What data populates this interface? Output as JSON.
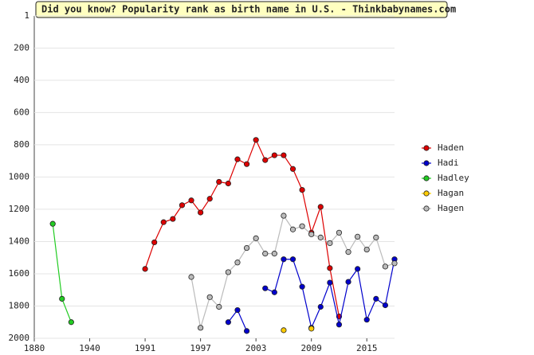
{
  "chart_data": {
    "type": "line",
    "title": "Did you know? Popularity rank as birth name in U.S. - Thinkbabynames.com",
    "categories": [
      "1880",
      null,
      null,
      null,
      null,
      null,
      "1940",
      null,
      null,
      null,
      null,
      null,
      "1991",
      null,
      null,
      null,
      null,
      null,
      "1997",
      null,
      null,
      null,
      null,
      null,
      "2003",
      null,
      null,
      null,
      null,
      null,
      "2009",
      null,
      null,
      null,
      null,
      null,
      "2015",
      null,
      null,
      null
    ],
    "ylim": [
      1,
      2000
    ],
    "yticks": [
      1,
      200,
      400,
      600,
      800,
      1000,
      1200,
      1400,
      1600,
      1800,
      2000
    ],
    "inverted_y": true,
    "grid": true,
    "legend": "right",
    "series": [
      {
        "name": "Haden",
        "color": "#dd0000",
        "values": [
          null,
          null,
          null,
          null,
          null,
          null,
          null,
          null,
          null,
          null,
          null,
          null,
          1570,
          1405,
          1280,
          1260,
          1175,
          1145,
          1220,
          1135,
          1030,
          1040,
          890,
          920,
          770,
          895,
          865,
          865,
          950,
          1080,
          1345,
          1185,
          1565,
          1865,
          null,
          null,
          null,
          null,
          null,
          null
        ]
      },
      {
        "name": "Hadi",
        "color": "#0000cc",
        "values": [
          null,
          null,
          null,
          null,
          null,
          null,
          null,
          null,
          null,
          null,
          null,
          null,
          null,
          null,
          null,
          null,
          null,
          null,
          null,
          null,
          null,
          1900,
          1825,
          1955,
          null,
          1690,
          1715,
          1510,
          1510,
          1680,
          1935,
          1805,
          1655,
          1915,
          1650,
          1570,
          1885,
          1755,
          1795,
          1510
        ]
      },
      {
        "name": "Hadley",
        "color": "#22cc22",
        "values": [
          null,
          null,
          1290,
          1755,
          1900,
          null,
          null,
          null,
          null,
          null,
          null,
          null,
          null,
          null,
          null,
          null,
          null,
          null,
          null,
          null,
          null,
          null,
          null,
          null,
          null,
          null,
          null,
          null,
          null,
          null,
          null,
          null,
          null,
          null,
          null,
          null,
          null,
          null,
          null,
          null
        ]
      },
      {
        "name": "Hagan",
        "color": "#ffcc00",
        "values": [
          null,
          null,
          null,
          null,
          null,
          null,
          null,
          null,
          null,
          null,
          null,
          null,
          null,
          null,
          null,
          null,
          null,
          null,
          null,
          null,
          null,
          null,
          null,
          null,
          null,
          null,
          null,
          1950,
          null,
          null,
          1940,
          null,
          null,
          null,
          null,
          null,
          null,
          null,
          null,
          null
        ]
      },
      {
        "name": "Hagen",
        "color": "#bbbbbb",
        "values": [
          null,
          null,
          null,
          null,
          null,
          null,
          null,
          null,
          null,
          null,
          null,
          null,
          null,
          null,
          null,
          null,
          null,
          1620,
          1935,
          1745,
          1805,
          1590,
          1530,
          1440,
          1380,
          1475,
          1475,
          1240,
          1325,
          1305,
          1355,
          1375,
          1410,
          1345,
          1465,
          1370,
          1450,
          1375,
          1555,
          1535
        ]
      }
    ]
  }
}
